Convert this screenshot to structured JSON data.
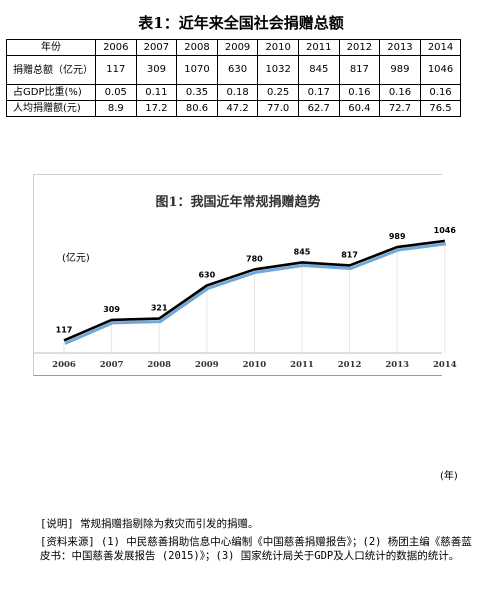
{
  "page": {
    "title": "表1：近年来全国社会捐赠总额"
  },
  "table": {
    "header_label": "年份",
    "years": [
      "2006",
      "2007",
      "2008",
      "2009",
      "2010",
      "2011",
      "2012",
      "2013",
      "2014"
    ],
    "rows": [
      {
        "label": "捐赠总额（亿元）",
        "values": [
          "117",
          "309",
          "1070",
          "630",
          "1032",
          "845",
          "817",
          "989",
          "1046"
        ]
      },
      {
        "label": "占GDP比重(%)",
        "values": [
          "0.05",
          "0.11",
          "0.35",
          "0.18",
          "0.25",
          "0.17",
          "0.16",
          "0.16",
          "0.16"
        ]
      },
      {
        "label": "人均捐赠额(元)",
        "values": [
          "8.9",
          "17.2",
          "80.6",
          "47.2",
          "77.0",
          "62.7",
          "60.4",
          "72.7",
          "76.5"
        ]
      }
    ]
  },
  "chart_data": {
    "type": "line",
    "title": "图1：我国近年常规捐赠趋势",
    "ylabel": "(亿元)",
    "xlabel": "(年)",
    "x": [
      "2006",
      "2007",
      "2008",
      "2009",
      "2010",
      "2011",
      "2012",
      "2013",
      "2014"
    ],
    "values": [
      117,
      309,
      321,
      630,
      780,
      845,
      817,
      989,
      1046
    ],
    "ylim": [
      0,
      1400
    ],
    "grid": "vertical",
    "line_color": "#000000",
    "shadow_color": "#6fa8dc"
  },
  "notes": {
    "explanation": "[说明] 常规捐赠指剔除为救灾而引发的捐赠。",
    "source": "[资料来源] (1) 中民慈善捐助信息中心编制《中国慈善捐赠报告》；(2) 杨团主编《慈善蓝皮书：中国慈善发展报告 (2015)》；(3) 国家统计局关于GDP及人口统计的数据的统计。"
  }
}
